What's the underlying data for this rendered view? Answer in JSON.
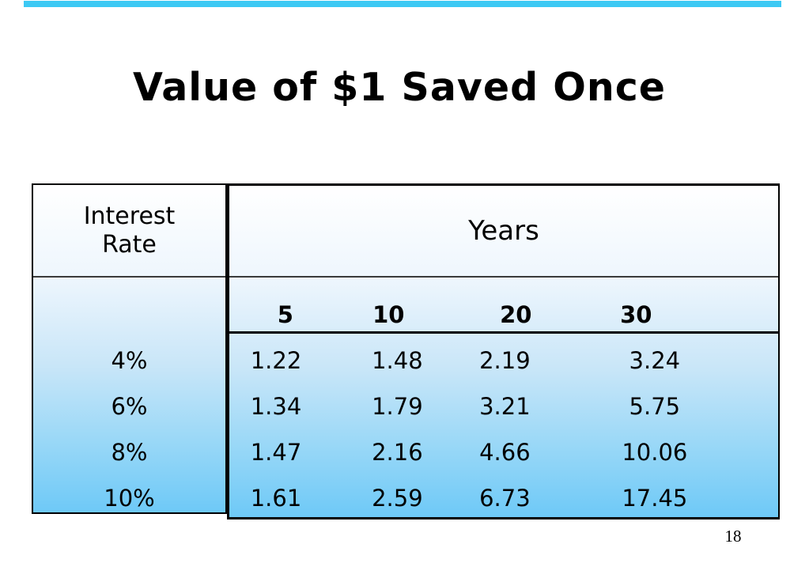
{
  "slide": {
    "title": "Value of $1 Saved Once",
    "page_number": "18",
    "background_color": "#FFFFFF",
    "accent_color": "#3CC9F4",
    "text_color": "#000000"
  },
  "table": {
    "row_header_title": "Interest Rate",
    "col_group_title": "Years",
    "col_headers": [
      "5",
      "10",
      "20",
      "30"
    ],
    "rows": [
      {
        "rate": "4%",
        "values": [
          "1.22",
          "1.48",
          "2.19",
          "3.24"
        ]
      },
      {
        "rate": "6%",
        "values": [
          "1.34",
          "1.79",
          "3.21",
          "5.75"
        ]
      },
      {
        "rate": "8%",
        "values": [
          "1.47",
          "2.16",
          "4.66",
          "10.06"
        ]
      },
      {
        "rate": "10%",
        "values": [
          "1.61",
          "2.59",
          "6.73",
          "17.45"
        ]
      }
    ],
    "gradient_top_color": "#FFFFFF",
    "gradient_bottom_color": "#6EC9F7",
    "border_color": "#000000"
  },
  "chart_data": {
    "type": "table",
    "title": "Value of $1 Saved Once",
    "row_axis_label": "Interest Rate",
    "col_axis_label": "Years",
    "columns": [
      5,
      10,
      20,
      30
    ],
    "rows": [
      {
        "interest_rate": "4%",
        "values": [
          1.22,
          1.48,
          2.19,
          3.24
        ]
      },
      {
        "interest_rate": "6%",
        "values": [
          1.34,
          1.79,
          3.21,
          5.75
        ]
      },
      {
        "interest_rate": "8%",
        "values": [
          1.47,
          2.16,
          4.66,
          10.06
        ]
      },
      {
        "interest_rate": "10%",
        "values": [
          1.61,
          2.59,
          6.73,
          17.45
        ]
      }
    ]
  }
}
